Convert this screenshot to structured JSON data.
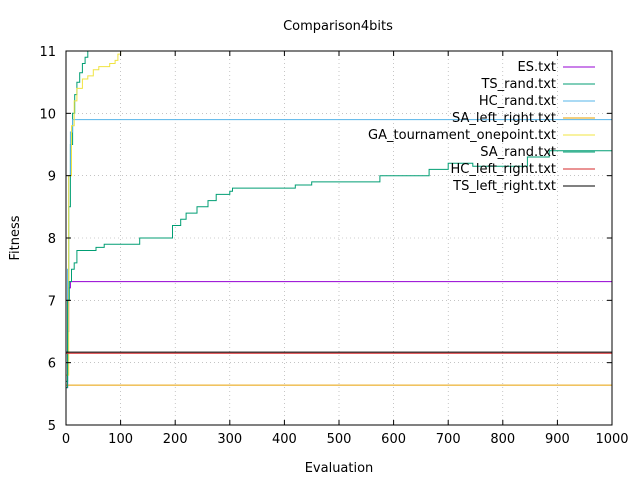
{
  "chart_data": {
    "type": "line",
    "title": "Comparison4bits",
    "xlabel": "Evaluation",
    "ylabel": "Fitness",
    "xlim": [
      0,
      1000
    ],
    "ylim": [
      5,
      11
    ],
    "xticks": [
      0,
      100,
      200,
      300,
      400,
      500,
      600,
      700,
      800,
      900,
      1000
    ],
    "yticks": [
      5,
      6,
      7,
      8,
      9,
      10,
      11
    ],
    "grid": true,
    "legend_position": "top-right",
    "series": [
      {
        "name": "ES.txt",
        "color": "#9400d3",
        "points": [
          [
            0,
            5.6
          ],
          [
            3,
            6.5
          ],
          [
            5,
            7.2
          ],
          [
            8,
            7.3
          ],
          [
            1000,
            7.3
          ]
        ]
      },
      {
        "name": "TS_rand.txt",
        "color": "#009e73",
        "points": [
          [
            0,
            5.7
          ],
          [
            3,
            7.0
          ],
          [
            5,
            8.5
          ],
          [
            8,
            9.5
          ],
          [
            12,
            10.0
          ],
          [
            16,
            10.3
          ],
          [
            20,
            10.5
          ],
          [
            25,
            10.65
          ],
          [
            30,
            10.8
          ],
          [
            35,
            10.9
          ],
          [
            40,
            11.0
          ],
          [
            42,
            11.0
          ]
        ]
      },
      {
        "name": "HC_rand.txt",
        "color": "#56b4e9",
        "points": [
          [
            0,
            5.8
          ],
          [
            3,
            7.5
          ],
          [
            5,
            9.0
          ],
          [
            8,
            9.7
          ],
          [
            12,
            9.9
          ],
          [
            1000,
            9.9
          ]
        ]
      },
      {
        "name": "SA_left_right.txt",
        "color": "#e69f00",
        "points": [
          [
            0,
            5.64
          ],
          [
            1000,
            5.64
          ]
        ]
      },
      {
        "name": "GA_tournament_onepoint.txt",
        "color": "#f0e442",
        "points": [
          [
            0,
            5.8
          ],
          [
            5,
            9.0
          ],
          [
            10,
            9.8
          ],
          [
            15,
            10.2
          ],
          [
            20,
            10.4
          ],
          [
            30,
            10.55
          ],
          [
            40,
            10.6
          ],
          [
            50,
            10.7
          ],
          [
            60,
            10.75
          ],
          [
            80,
            10.8
          ],
          [
            90,
            10.85
          ],
          [
            95,
            10.95
          ],
          [
            100,
            11.0
          ],
          [
            200,
            11.0
          ]
        ]
      },
      {
        "name": "SA_rand.txt",
        "color": "#009e73",
        "points": [
          [
            0,
            5.6
          ],
          [
            3,
            7.0
          ],
          [
            6,
            7.3
          ],
          [
            10,
            7.5
          ],
          [
            15,
            7.6
          ],
          [
            20,
            7.8
          ],
          [
            50,
            7.8
          ],
          [
            55,
            7.85
          ],
          [
            70,
            7.9
          ],
          [
            130,
            7.9
          ],
          [
            135,
            8.0
          ],
          [
            190,
            8.0
          ],
          [
            195,
            8.2
          ],
          [
            210,
            8.3
          ],
          [
            220,
            8.4
          ],
          [
            240,
            8.5
          ],
          [
            260,
            8.6
          ],
          [
            275,
            8.7
          ],
          [
            300,
            8.75
          ],
          [
            305,
            8.8
          ],
          [
            400,
            8.8
          ],
          [
            420,
            8.85
          ],
          [
            450,
            8.9
          ],
          [
            570,
            8.9
          ],
          [
            575,
            9.0
          ],
          [
            660,
            9.0
          ],
          [
            665,
            9.1
          ],
          [
            700,
            9.2
          ],
          [
            740,
            9.2
          ],
          [
            745,
            9.15
          ],
          [
            840,
            9.15
          ],
          [
            845,
            9.3
          ],
          [
            880,
            9.3
          ],
          [
            885,
            9.4
          ],
          [
            1000,
            9.4
          ]
        ]
      },
      {
        "name": "HC_left_right.txt",
        "color": "#d62728",
        "points": [
          [
            0,
            6.15
          ],
          [
            1000,
            6.15
          ]
        ]
      },
      {
        "name": "TS_left_right.txt",
        "color": "#000000",
        "points": [
          [
            0,
            6.17
          ],
          [
            1000,
            6.17
          ]
        ]
      }
    ]
  }
}
